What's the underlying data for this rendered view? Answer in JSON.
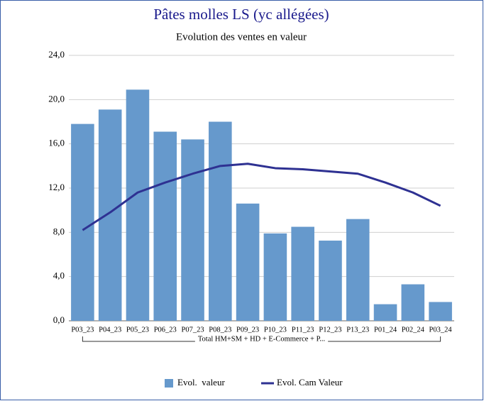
{
  "chart_data": {
    "type": "bar",
    "title": "Pâtes molles LS (yc allégées)",
    "subtitle": "Evolution des ventes en valeur",
    "categories": [
      "P03_23",
      "P04_23",
      "P05_23",
      "P06_23",
      "P07_23",
      "P08_23",
      "P09_23",
      "P10_23",
      "P11_23",
      "P12_23",
      "P13_23",
      "P01_24",
      "P02_24",
      "P03_24"
    ],
    "group_label": "Total HM+SM + HD + E-Commerce + P...",
    "series": [
      {
        "name": "Evol.  valeur",
        "type": "bar",
        "color": "#6699cc",
        "values": [
          17.8,
          19.1,
          20.9,
          17.1,
          16.4,
          18.0,
          10.6,
          7.9,
          8.5,
          7.25,
          9.2,
          1.5,
          3.3,
          1.7
        ]
      },
      {
        "name": "Evol. Cam Valeur",
        "type": "line",
        "color": "#2e3192",
        "values": [
          8.2,
          9.8,
          11.6,
          12.5,
          13.3,
          14.0,
          14.2,
          13.8,
          13.7,
          13.5,
          13.3,
          12.5,
          11.6,
          10.4
        ]
      }
    ],
    "ylim": [
      0,
      24
    ],
    "yticks": [
      {
        "value": 0,
        "label": "0,0"
      },
      {
        "value": 4,
        "label": "4,0"
      },
      {
        "value": 8,
        "label": "8,0"
      },
      {
        "value": 12,
        "label": "12,0"
      },
      {
        "value": 16,
        "label": "16,0"
      },
      {
        "value": 20,
        "label": "20,0"
      },
      {
        "value": 24,
        "label": "24,0"
      }
    ],
    "grid": true
  }
}
